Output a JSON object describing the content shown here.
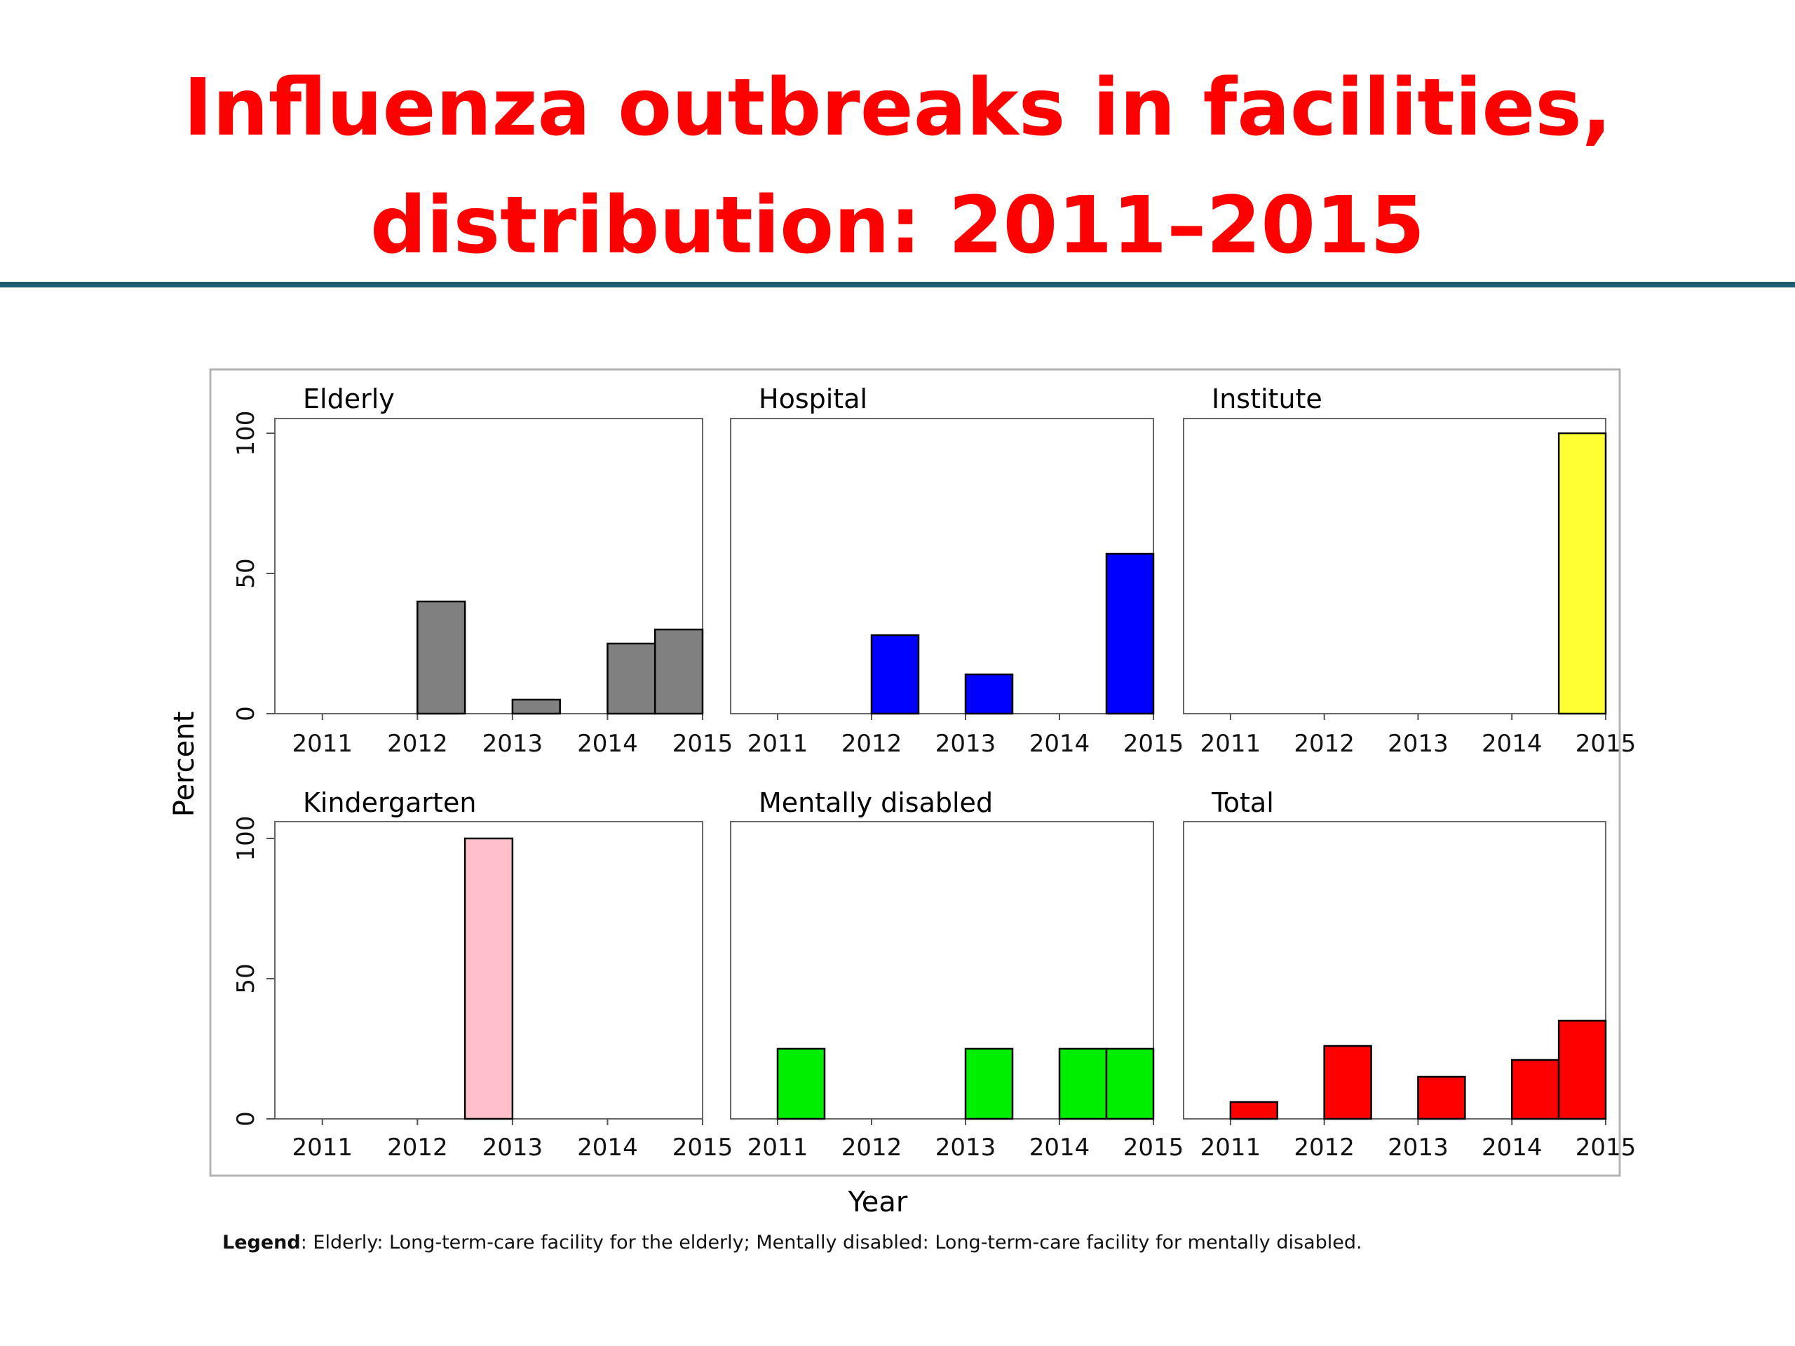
{
  "slide": {
    "title_line1": "Influenza outbreaks in facilities,",
    "title_line2": "distribution: 2011–2015"
  },
  "chart_data": {
    "type": "bar",
    "layout": "small-multiples 2x3",
    "xlabel": "Year",
    "ylabel": "Percent",
    "ylim": [
      0,
      100
    ],
    "yticks": [
      0,
      50,
      100
    ],
    "categories": [
      "2011",
      "2012",
      "2013",
      "2014",
      "2015"
    ],
    "panels": [
      {
        "name": "Elderly",
        "color": "#808080",
        "bars": [
          {
            "x": 2012,
            "value": 40
          },
          {
            "x": 2013,
            "value": 5
          },
          {
            "x": 2014,
            "value": 25
          },
          {
            "x": 2014.5,
            "value": 30
          }
        ]
      },
      {
        "name": "Hospital",
        "color": "#0000ff",
        "bars": [
          {
            "x": 2012,
            "value": 28
          },
          {
            "x": 2013,
            "value": 14
          },
          {
            "x": 2014.5,
            "value": 57
          }
        ]
      },
      {
        "name": "Institute",
        "color": "#ffff33",
        "bars": [
          {
            "x": 2014.5,
            "value": 100
          }
        ]
      },
      {
        "name": "Kindergarten",
        "color": "#ffc0cb",
        "bars": [
          {
            "x": 2012.5,
            "value": 100
          }
        ]
      },
      {
        "name": "Mentally disabled",
        "color": "#00ee00",
        "bars": [
          {
            "x": 2011,
            "value": 25
          },
          {
            "x": 2013,
            "value": 25
          },
          {
            "x": 2014,
            "value": 25
          },
          {
            "x": 2014.5,
            "value": 25
          }
        ]
      },
      {
        "name": "Total",
        "color": "#ff0000",
        "bars": [
          {
            "x": 2011,
            "value": 6
          },
          {
            "x": 2012,
            "value": 26
          },
          {
            "x": 2013,
            "value": 15
          },
          {
            "x": 2014,
            "value": 21
          },
          {
            "x": 2014.5,
            "value": 35
          }
        ]
      }
    ],
    "note_label": "Legend",
    "note_text": ": Elderly: Long-term-care facility for the elderly; Mentally disabled: Long-term-care facility for mentally disabled."
  }
}
